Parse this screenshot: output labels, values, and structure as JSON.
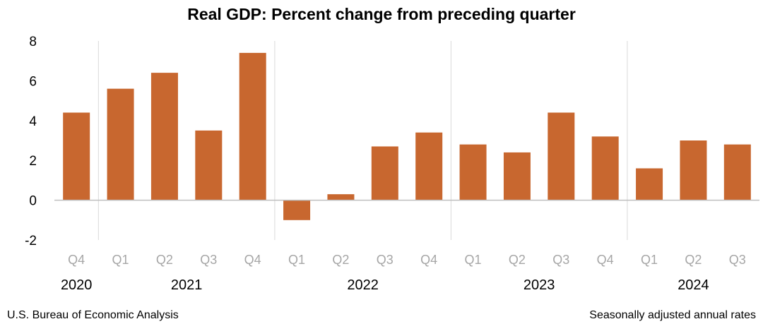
{
  "chart_data": {
    "type": "bar",
    "title": "Real GDP:  Percent change from preceding quarter",
    "categories": [
      "Q4",
      "Q1",
      "Q2",
      "Q3",
      "Q4",
      "Q1",
      "Q2",
      "Q3",
      "Q4",
      "Q1",
      "Q2",
      "Q3",
      "Q4",
      "Q1",
      "Q2",
      "Q3"
    ],
    "years": [
      {
        "label": "2020",
        "quarters": 1
      },
      {
        "label": "2021",
        "quarters": 4
      },
      {
        "label": "2022",
        "quarters": 4
      },
      {
        "label": "2023",
        "quarters": 4
      },
      {
        "label": "2024",
        "quarters": 3
      }
    ],
    "values": [
      4.4,
      5.6,
      6.4,
      3.5,
      7.4,
      -1.0,
      0.3,
      2.7,
      3.4,
      2.8,
      2.4,
      4.4,
      3.2,
      1.6,
      3.0,
      2.8
    ],
    "ylim": [
      -2,
      8
    ],
    "yticks": [
      -2,
      0,
      2,
      4,
      6,
      8
    ],
    "grid": false,
    "bar_color": "#C8672F",
    "xlabel": "",
    "ylabel": ""
  },
  "footer": {
    "source": "U.S. Bureau of Economic Analysis",
    "note": "Seasonally adjusted annual rates"
  }
}
